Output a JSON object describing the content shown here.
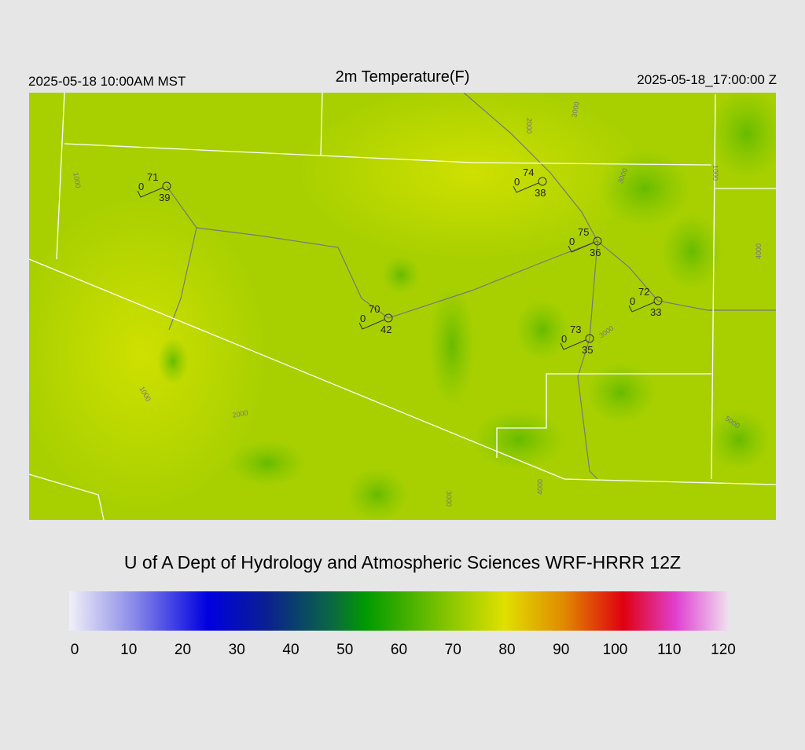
{
  "header": {
    "left": "2025-05-18 10:00AM MST",
    "title": "2m Temperature(F)",
    "right": "2025-05-18_17:00:00 Z"
  },
  "stations": [
    {
      "temp": 71,
      "dewpoint": 39,
      "wind": 0
    },
    {
      "temp": 74,
      "dewpoint": 38,
      "wind": 0
    },
    {
      "temp": 75,
      "dewpoint": 36,
      "wind": 0
    },
    {
      "temp": 72,
      "dewpoint": 33,
      "wind": 0
    },
    {
      "temp": 70,
      "dewpoint": 42,
      "wind": 0
    },
    {
      "temp": 73,
      "dewpoint": 35,
      "wind": 0
    }
  ],
  "contour_labels": [
    1000,
    2000,
    3000,
    1000,
    3000,
    4000,
    1000,
    2000,
    3000,
    5000,
    3000,
    4000
  ],
  "footer": "U of A Dept of Hydrology and Atmospheric Sciences WRF-HRRR 12Z",
  "colorbar": {
    "ticks": [
      0,
      10,
      20,
      30,
      40,
      50,
      60,
      70,
      80,
      90,
      100,
      110,
      120
    ]
  }
}
